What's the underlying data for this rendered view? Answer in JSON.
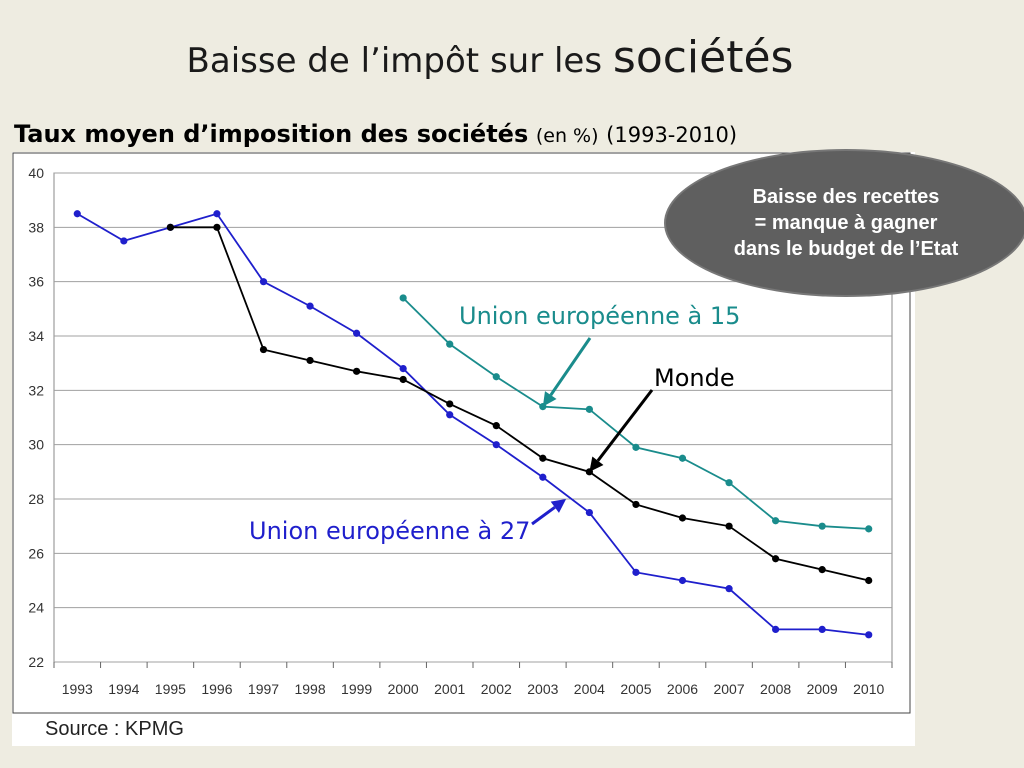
{
  "slide": {
    "title_part1": "Baisse de l’impôt sur les ",
    "title_part2": "sociétés",
    "subtitle_bold": "Taux moyen d’imposition des sociétés",
    "subtitle_unit": "(en %)",
    "subtitle_years": "(1993-2010)",
    "source": "Source : KPMG"
  },
  "bubble": {
    "lines": [
      "Baisse des recettes",
      "= manque à gagner",
      "dans le budget de l’Etat"
    ]
  },
  "chart_data": {
    "type": "line",
    "title": "",
    "xlabel": "",
    "ylabel": "",
    "x": [
      1993,
      1994,
      1995,
      1996,
      1997,
      1998,
      1999,
      2000,
      2001,
      2002,
      2003,
      2004,
      2005,
      2006,
      2007,
      2008,
      2009,
      2010
    ],
    "ylim": [
      22,
      40
    ],
    "yticks": [
      22,
      24,
      26,
      28,
      30,
      32,
      34,
      36,
      38,
      40
    ],
    "grid": true,
    "series": [
      {
        "name": "Union européenne à 27",
        "color": "#1f1fcc",
        "values": [
          38.5,
          37.5,
          38.0,
          38.5,
          36.0,
          35.1,
          34.1,
          32.8,
          31.1,
          30.0,
          28.8,
          27.5,
          25.3,
          25.0,
          24.7,
          23.2,
          23.2,
          23.0
        ]
      },
      {
        "name": "Monde",
        "color": "#000000",
        "values": [
          null,
          null,
          38.0,
          38.0,
          33.5,
          33.1,
          32.7,
          32.4,
          31.5,
          30.7,
          29.5,
          29.0,
          27.8,
          27.3,
          27.0,
          25.8,
          25.4,
          25.0
        ]
      },
      {
        "name": "Union européenne à 15",
        "color": "#1a8c8c",
        "values": [
          null,
          null,
          null,
          null,
          null,
          null,
          null,
          35.4,
          33.7,
          32.5,
          31.4,
          31.3,
          29.9,
          29.5,
          28.6,
          27.2,
          27.0,
          26.9
        ]
      }
    ],
    "annotations": [
      {
        "text": "Union européenne à 15",
        "series": "Union européenne à 15",
        "target_x": 2003,
        "target_y": 31.4,
        "color": "#1a8c8c"
      },
      {
        "text": "Monde",
        "series": "Monde",
        "target_x": 2004,
        "target_y": 29.0,
        "color": "#000000"
      },
      {
        "text": "Union européenne à 27",
        "series": "Union européenne à 27",
        "target_x": 2003.5,
        "target_y": 28.0,
        "color": "#1f1fcc"
      }
    ]
  }
}
